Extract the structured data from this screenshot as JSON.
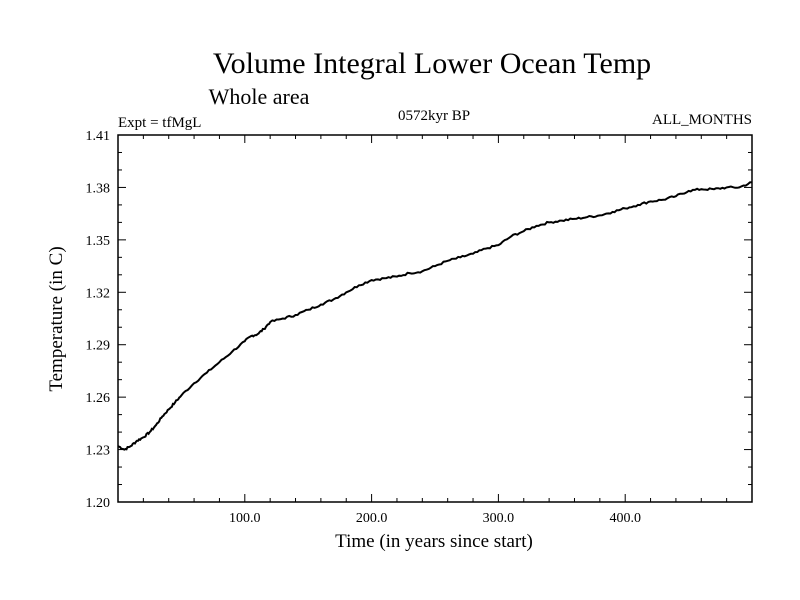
{
  "chart_data": {
    "type": "line",
    "title": "Volume Integral Lower Ocean Temp",
    "subtitle": "Whole area",
    "experiment": "Expt = tfMgL",
    "period": "0572kyr BP",
    "season": "ALL_MONTHS",
    "xlabel": "Time (in years since start)",
    "ylabel": "Temperature (in C)",
    "xlim": [
      0,
      500
    ],
    "ylim": [
      1.2,
      1.41
    ],
    "x_ticks": [
      100,
      200,
      300,
      400
    ],
    "x_tick_labels": [
      "100.0",
      "200.0",
      "300.0",
      "400.0"
    ],
    "y_ticks": [
      1.2,
      1.23,
      1.26,
      1.29,
      1.32,
      1.35,
      1.38,
      1.41
    ],
    "y_tick_labels": [
      "1.20",
      "1.23",
      "1.26",
      "1.29",
      "1.32",
      "1.35",
      "1.38",
      "1.41"
    ],
    "grid": false,
    "line_color": "#000000",
    "series": [
      {
        "x": [
          0,
          5,
          10,
          15,
          20,
          25,
          30,
          35,
          40,
          45,
          50,
          60,
          70,
          80,
          90,
          100,
          105,
          110,
          115,
          120,
          130,
          140,
          150,
          160,
          170,
          180,
          190,
          200,
          210,
          220,
          230,
          240,
          250,
          260,
          270,
          280,
          290,
          300,
          310,
          320,
          330,
          340,
          350,
          360,
          370,
          380,
          390,
          400,
          410,
          420,
          430,
          440,
          450,
          460,
          470,
          480,
          490,
          500
        ],
        "y": [
          1.232,
          1.23,
          1.232,
          1.235,
          1.237,
          1.24,
          1.244,
          1.249,
          1.253,
          1.257,
          1.261,
          1.268,
          1.274,
          1.28,
          1.286,
          1.292,
          1.295,
          1.296,
          1.299,
          1.303,
          1.305,
          1.307,
          1.31,
          1.313,
          1.316,
          1.32,
          1.324,
          1.327,
          1.328,
          1.329,
          1.331,
          1.332,
          1.335,
          1.338,
          1.34,
          1.342,
          1.345,
          1.347,
          1.352,
          1.355,
          1.358,
          1.36,
          1.361,
          1.362,
          1.363,
          1.364,
          1.366,
          1.368,
          1.37,
          1.372,
          1.373,
          1.375,
          1.378,
          1.379,
          1.379,
          1.38,
          1.38,
          1.383
        ]
      }
    ]
  }
}
